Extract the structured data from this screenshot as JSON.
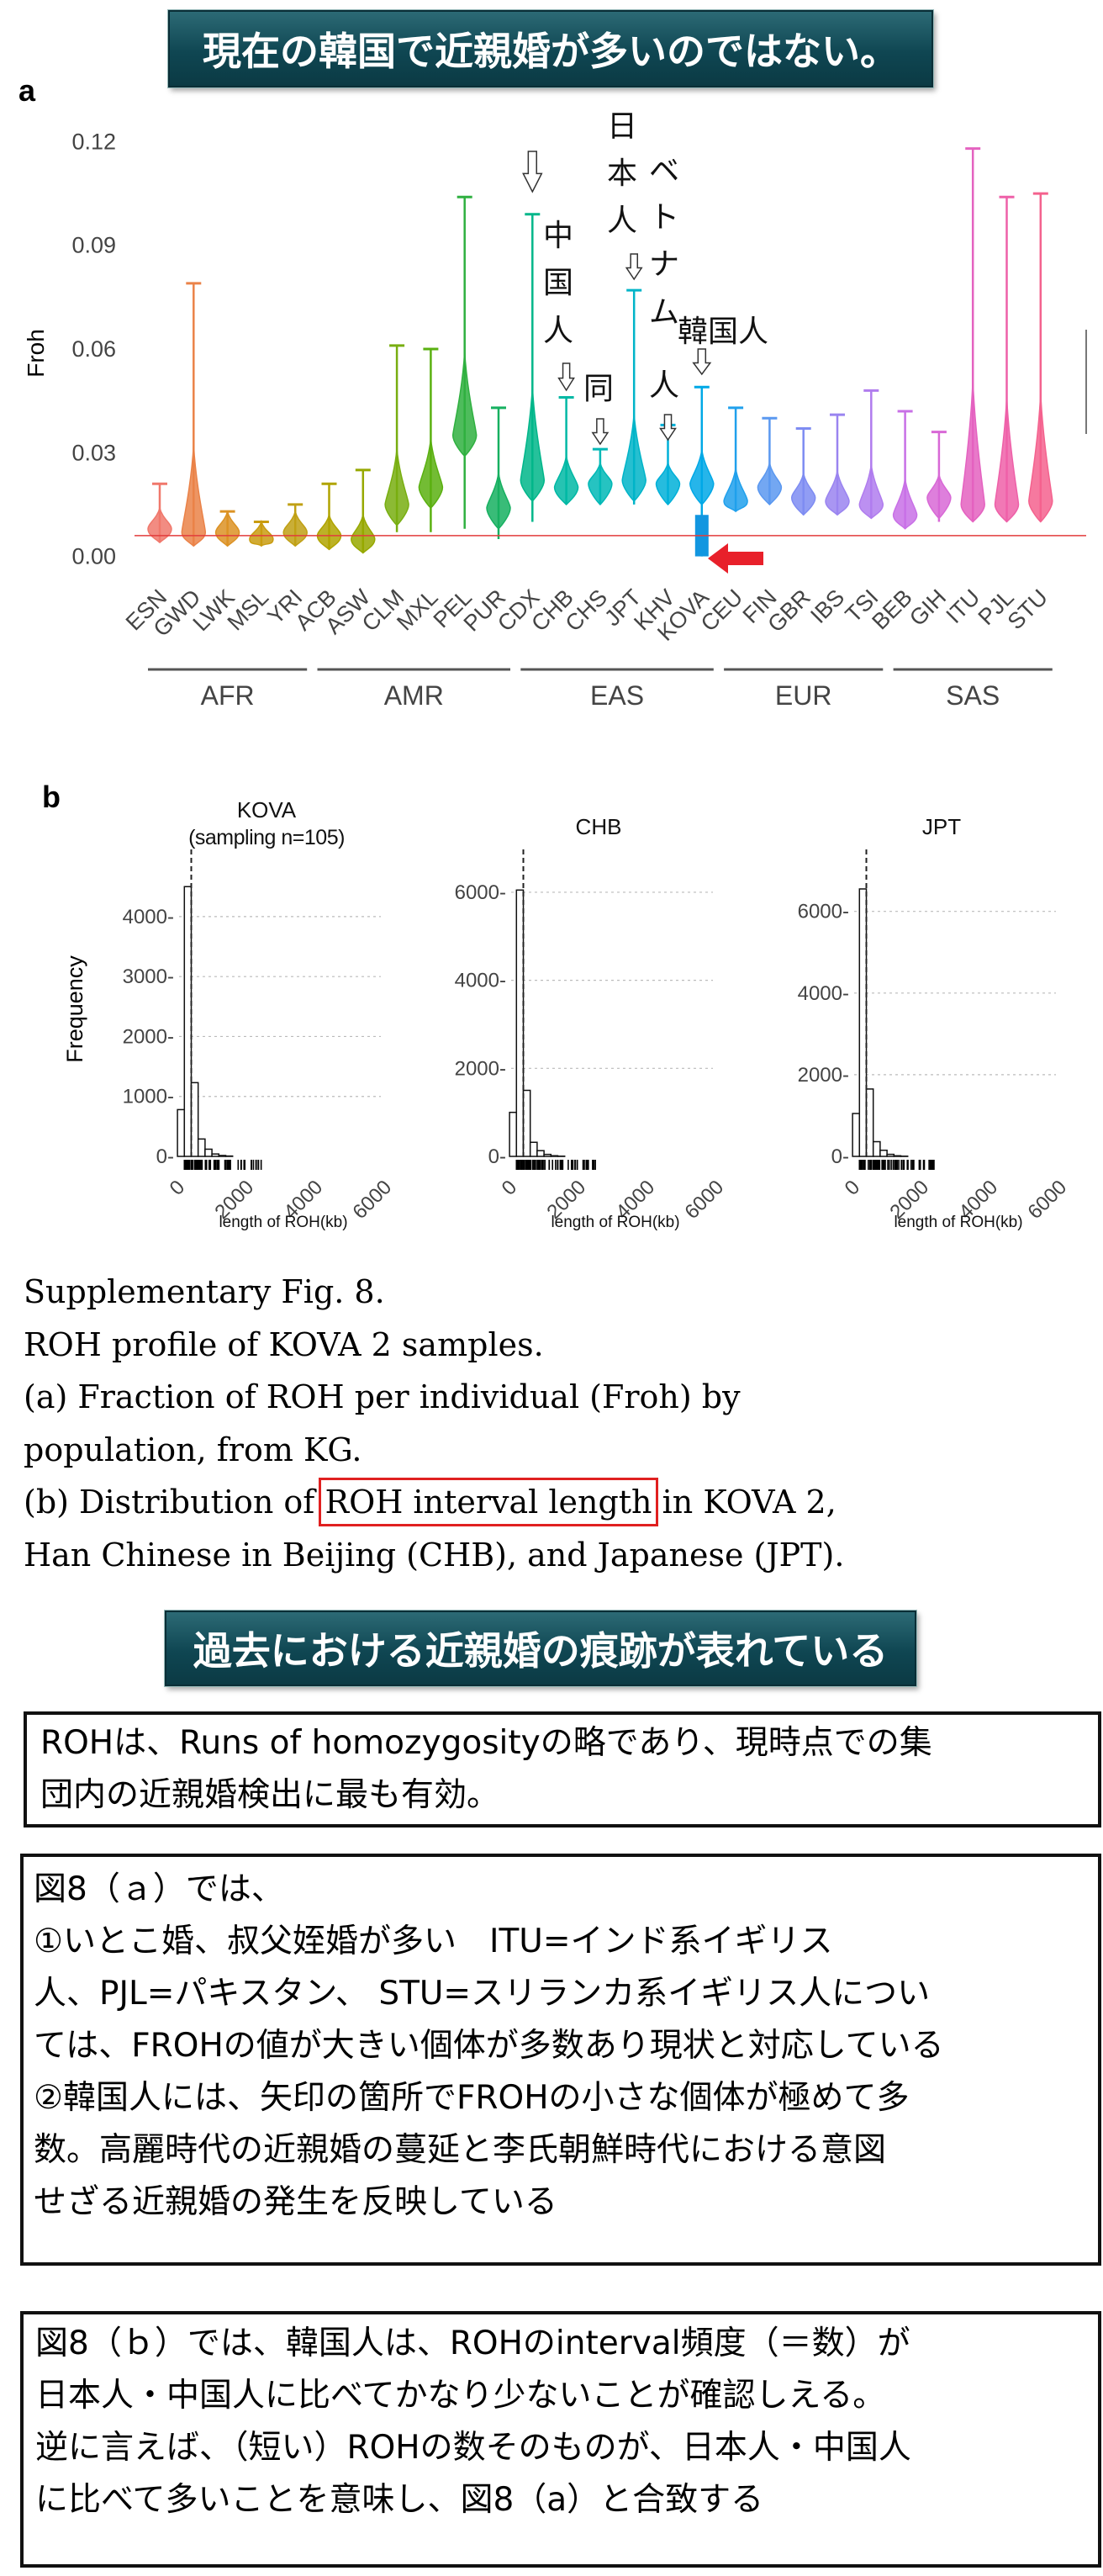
{
  "banners": {
    "top": "現在の韓国で近親婚が多いのではない。",
    "middle": "過去における近親婚の痕跡が表れている"
  },
  "figure_a": {
    "panel_label": "a",
    "annotations": {
      "japan_vietnam_col1": [
        "日",
        "本",
        "人"
      ],
      "japan_vietnam_col2": [
        "ベ",
        "ト",
        "ナ",
        "ム",
        "人"
      ],
      "china": [
        "中",
        "国",
        "人"
      ],
      "same": "同",
      "korea": "韓国人"
    }
  },
  "figure_b": {
    "panel_label": "b",
    "panels": [
      {
        "title_line1": "KOVA",
        "title_line2": "(sampling n=105)"
      },
      {
        "title_line1": "CHB",
        "title_line2": ""
      },
      {
        "title_line1": "JPT",
        "title_line2": ""
      }
    ]
  },
  "caption": {
    "line1": "Supplementary Fig. 8.",
    "line2": "ROH profile of KOVA 2 samples.",
    "line3": "(a) Fraction of ROH per individual (Froh) by",
    "line4": "population, from KG.",
    "line5_pre": "(b) Distribution of ",
    "line5_hl": "ROH interval length",
    "line5_post": " in KOVA 2,",
    "line6": "Han Chinese in Beijing (CHB), and Japanese (JPT)."
  },
  "box1": {
    "line1": "ROHは、Runs of homozygosityの略であり、現時点での集",
    "line2": "団内の近親婚検出に最も有効。"
  },
  "box2": {
    "line1": "図8（ａ）では、",
    "line2": "①いとこ婚、叔父姪婚が多い　ITU=インド系イギリス",
    "line3": "人、PJL=パキスタン、 STU=スリランカ系イギリス人につい",
    "line4": "ては、FROHの値が大きい個体が多数あり現状と対応している",
    "line5": "②韓国人には、矢印の箇所でFROHの小さな個体が極めて多",
    "line6": "数。高麗時代の近親婚の蔓延と李氏朝鮮時代における意図",
    "line7": "せざる近親婚の発生を反映している"
  },
  "box3": {
    "line1": "図8（ｂ）では、韓国人は、ROHのinterval頻度（＝数）が",
    "line2": "日本人・中国人に比べてかなり少ないことが確認しえる。",
    "line3": "逆に言えば、（短い）ROHの数そのものが、日本人・中国人",
    "line4": "に比べて多いことを意味し、図8（a）と合致する"
  },
  "chart_data": [
    {
      "type": "violin",
      "title": "",
      "xlabel": "",
      "ylabel": "Froh",
      "ylim": [
        -0.004,
        0.124
      ],
      "yticks": [
        0.0,
        0.03,
        0.06,
        0.09,
        0.12
      ],
      "ytick_labels": [
        "0.00",
        "0.03",
        "0.06",
        "0.09",
        "0.12"
      ],
      "reference_line_y": 0.006,
      "groups": [
        {
          "name": "AFR",
          "categories": [
            "ESN",
            "GWD",
            "LWK",
            "MSL",
            "YRI"
          ]
        },
        {
          "name": "AMR",
          "categories": [
            "ACB",
            "ASW",
            "CLM",
            "MXL",
            "PEL",
            "PUR"
          ]
        },
        {
          "name": "EAS",
          "categories": [
            "CDX",
            "CHB",
            "CHS",
            "JPT",
            "KHV",
            "KOVA"
          ]
        },
        {
          "name": "EUR",
          "categories": [
            "CEU",
            "FIN",
            "GBR",
            "IBS",
            "TSI"
          ]
        },
        {
          "name": "SAS",
          "categories": [
            "BEB",
            "GIH",
            "ITU",
            "PJL",
            "STU"
          ]
        }
      ],
      "series": [
        {
          "name": "ESN",
          "color": "#f0786c",
          "max": 0.021,
          "min": 0.004,
          "mode": 0.008
        },
        {
          "name": "GWD",
          "color": "#ea8248",
          "max": 0.079,
          "min": 0.003,
          "mode": 0.007
        },
        {
          "name": "LWK",
          "color": "#dc9224",
          "max": 0.013,
          "min": 0.003,
          "mode": 0.007
        },
        {
          "name": "MSL",
          "color": "#c99c10",
          "max": 0.01,
          "min": 0.003,
          "mode": 0.005
        },
        {
          "name": "YRI",
          "color": "#c0a014",
          "max": 0.015,
          "min": 0.003,
          "mode": 0.007
        },
        {
          "name": "ACB",
          "color": "#b0a400",
          "max": 0.021,
          "min": 0.002,
          "mode": 0.006
        },
        {
          "name": "ASW",
          "color": "#96a800",
          "max": 0.025,
          "min": 0.001,
          "mode": 0.005
        },
        {
          "name": "CLM",
          "color": "#78ae10",
          "max": 0.061,
          "min": 0.007,
          "mode": 0.015
        },
        {
          "name": "MXL",
          "color": "#5ab010",
          "max": 0.06,
          "min": 0.007,
          "mode": 0.02
        },
        {
          "name": "PEL",
          "color": "#2fb040",
          "max": 0.104,
          "min": 0.008,
          "mode": 0.035
        },
        {
          "name": "PUR",
          "color": "#16b060",
          "max": 0.043,
          "min": 0.005,
          "mode": 0.014
        },
        {
          "name": "CDX",
          "color": "#00b68a",
          "max": 0.099,
          "min": 0.01,
          "mode": 0.022
        },
        {
          "name": "CHB",
          "color": "#00b8a4",
          "max": 0.046,
          "min": 0.015,
          "mode": 0.02
        },
        {
          "name": "CHS",
          "color": "#00b8b6",
          "max": 0.031,
          "min": 0.015,
          "mode": 0.021
        },
        {
          "name": "JPT",
          "color": "#00b4c8",
          "max": 0.077,
          "min": 0.015,
          "mode": 0.022
        },
        {
          "name": "KHV",
          "color": "#00b0d8",
          "max": 0.038,
          "min": 0.015,
          "mode": 0.021
        },
        {
          "name": "KOVA",
          "color": "#00a8e6",
          "max": 0.049,
          "min": 0.0,
          "mode": 0.021
        },
        {
          "name": "CEU",
          "color": "#20a0ec",
          "max": 0.043,
          "min": 0.013,
          "mode": 0.016
        },
        {
          "name": "FIN",
          "color": "#5a98f0",
          "max": 0.04,
          "min": 0.015,
          "mode": 0.02
        },
        {
          "name": "GBR",
          "color": "#7e8cf2",
          "max": 0.037,
          "min": 0.012,
          "mode": 0.017
        },
        {
          "name": "IBS",
          "color": "#9a84f0",
          "max": 0.041,
          "min": 0.012,
          "mode": 0.016
        },
        {
          "name": "TSI",
          "color": "#b07cee",
          "max": 0.048,
          "min": 0.011,
          "mode": 0.015
        },
        {
          "name": "BEB",
          "color": "#c870e6",
          "max": 0.042,
          "min": 0.008,
          "mode": 0.012
        },
        {
          "name": "GIH",
          "color": "#d868d6",
          "max": 0.036,
          "min": 0.01,
          "mode": 0.017
        },
        {
          "name": "ITU",
          "color": "#e462c0",
          "max": 0.118,
          "min": 0.01,
          "mode": 0.015
        },
        {
          "name": "PJL",
          "color": "#ee60a8",
          "max": 0.104,
          "min": 0.01,
          "mode": 0.015
        },
        {
          "name": "STU",
          "color": "#f4628e",
          "max": 0.105,
          "min": 0.01,
          "mode": 0.016
        }
      ]
    },
    {
      "type": "bar",
      "title": "KOVA\n(sampling n=105)",
      "xlabel": "length of ROH(kb)",
      "ylabel": "Frequency",
      "xlim": [
        0,
        6000
      ],
      "xticks": [
        0,
        2000,
        4000,
        6000
      ],
      "ylim": [
        0,
        4700
      ],
      "yticks": [
        0,
        1000,
        2000,
        3000,
        4000
      ],
      "bin_width": 200,
      "bin_start": 100,
      "values": [
        780,
        4500,
        1230,
        290,
        120,
        40,
        15,
        6
      ],
      "median_line_x": 500,
      "rug": true
    },
    {
      "type": "bar",
      "title": "CHB",
      "xlabel": "length of ROH(kb)",
      "ylabel": "",
      "xlim": [
        0,
        6000
      ],
      "xticks": [
        0,
        2000,
        4000,
        6000
      ],
      "ylim": [
        0,
        6400
      ],
      "yticks": [
        0,
        2000,
        4000,
        6000
      ],
      "bin_width": 200,
      "bin_start": 100,
      "values": [
        1000,
        6050,
        1500,
        320,
        130,
        45,
        15,
        5
      ],
      "median_line_x": 500,
      "rug": true
    },
    {
      "type": "bar",
      "title": "JPT",
      "xlabel": "length of ROH(kb)",
      "ylabel": "",
      "xlim": [
        0,
        6000
      ],
      "xticks": [
        0,
        2000,
        4000,
        6000
      ],
      "ylim": [
        0,
        6900
      ],
      "yticks": [
        0,
        2000,
        4000,
        6000
      ],
      "bin_width": 200,
      "bin_start": 100,
      "values": [
        1050,
        6550,
        1650,
        360,
        150,
        50,
        15,
        5
      ],
      "median_line_x": 500,
      "rug": true
    }
  ]
}
